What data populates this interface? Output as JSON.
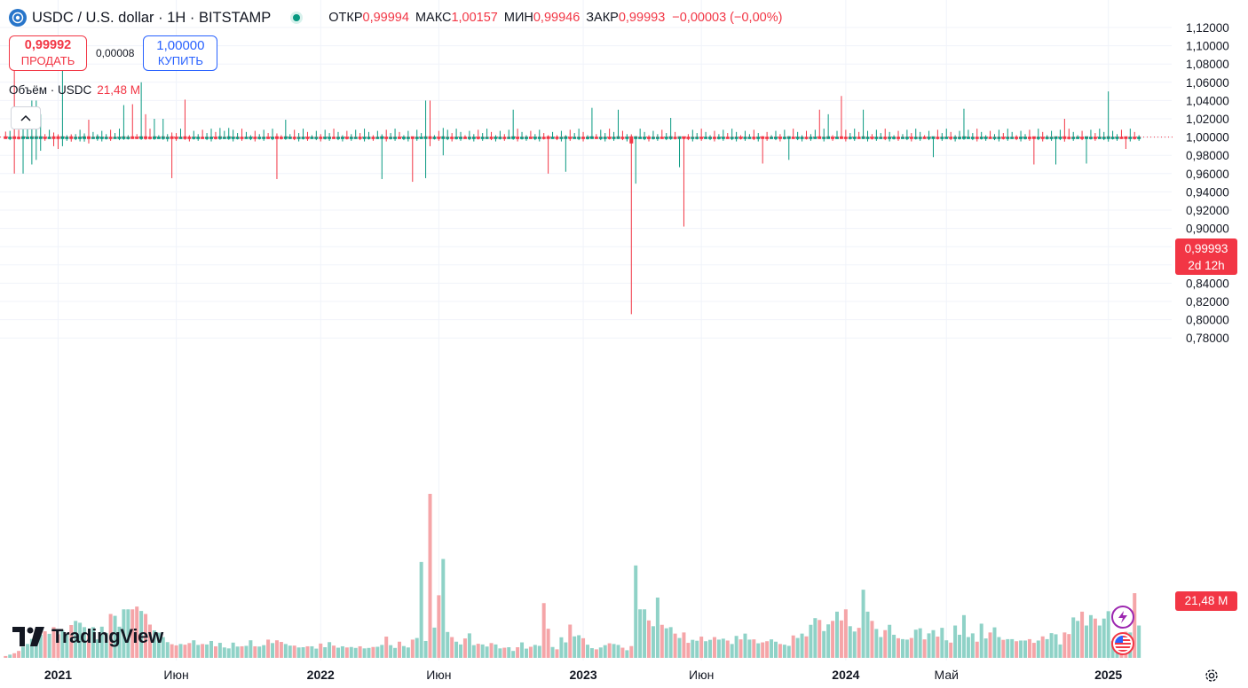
{
  "header": {
    "symbol_title": "USDC / U.S. dollar · 1H · BITSTAMP",
    "ohlc": {
      "open_label": "ОТКР",
      "open": "0,99994",
      "high_label": "МАКС",
      "high": "1,00157",
      "low_label": "МИН",
      "low": "0,99946",
      "close_label": "ЗАКР",
      "close": "0,99993",
      "change": "−0,00003 (−0,00%)"
    }
  },
  "trade": {
    "sell_price": "0,99992",
    "sell_label": "ПРОДАТЬ",
    "spread": "0,00008",
    "buy_price": "1,00000",
    "buy_label": "КУПИТЬ"
  },
  "volume_legend": {
    "label": "Объём · USDC",
    "value": "21,48 M"
  },
  "logo": {
    "wordmark": "TradingView"
  },
  "price_tag": {
    "price": "0,99993",
    "countdown": "2d 12h"
  },
  "volume_tag": {
    "value": "21,48 M"
  },
  "icons": {
    "symbol_logo": "usdc-coin-icon",
    "status": "market-open-dot-icon",
    "collapse": "chevron-up-icon",
    "lightning": "lightning-icon",
    "flag": "us-flag-icon",
    "settings": "gear-icon"
  },
  "colors": {
    "up": "#089981",
    "down": "#f23645",
    "volume_up": "#8fd2c7",
    "volume_down": "#f5a5a8",
    "grid": "#f0f3fa",
    "text": "#131722"
  },
  "chart_data": {
    "type": "candlestick",
    "ylim": [
      0.77,
      1.125
    ],
    "y_ticks": [
      "1,12000",
      "1,10000",
      "1,08000",
      "1,06000",
      "1,04000",
      "1,02000",
      "1,00000",
      "0,98000",
      "0,96000",
      "0,94000",
      "0,92000",
      "0,90000",
      "0,88000",
      "0,86000",
      "0,84000",
      "0,82000",
      "0,80000",
      "0,78000"
    ],
    "y_tick_values": [
      1.12,
      1.1,
      1.08,
      1.06,
      1.04,
      1.02,
      1.0,
      0.98,
      0.96,
      0.94,
      0.92,
      0.9,
      0.88,
      0.86,
      0.84,
      0.82,
      0.8,
      0.78
    ],
    "x_tick_labels": [
      {
        "label": "2021",
        "index": 12,
        "bold": true
      },
      {
        "label": "Июн",
        "index": 39,
        "bold": false
      },
      {
        "label": "2022",
        "index": 72,
        "bold": true
      },
      {
        "label": "Июн",
        "index": 99,
        "bold": false
      },
      {
        "label": "2023",
        "index": 132,
        "bold": true
      },
      {
        "label": "Июн",
        "index": 159,
        "bold": false
      },
      {
        "label": "2024",
        "index": 192,
        "bold": true
      },
      {
        "label": "Май",
        "index": 215,
        "bold": false
      },
      {
        "label": "2025",
        "index": 252,
        "bold": true
      }
    ],
    "last_price": 0.99993,
    "series": [
      {
        "name": "Price",
        "values": [
          {
            "i": 0,
            "dir": "down",
            "low": 0.998,
            "high": 1.006
          },
          {
            "i": 2,
            "dir": "down",
            "low": 0.96,
            "high": 1.08
          },
          {
            "i": 4,
            "dir": "up",
            "low": 0.96,
            "high": 1.02
          },
          {
            "i": 6,
            "dir": "up",
            "low": 0.97,
            "high": 1.04
          },
          {
            "i": 7,
            "dir": "up",
            "low": 0.975,
            "high": 1.04
          },
          {
            "i": 8,
            "dir": "up",
            "low": 0.985,
            "high": 1.025
          },
          {
            "i": 11,
            "dir": "down",
            "low": 0.99,
            "high": 1.005
          },
          {
            "i": 12,
            "dir": "down",
            "low": 0.987,
            "high": 1.003
          },
          {
            "i": 13,
            "dir": "up",
            "low": 0.99,
            "high": 1.095
          },
          {
            "i": 15,
            "dir": "down",
            "low": 0.995,
            "high": 1.003
          },
          {
            "i": 18,
            "dir": "up",
            "low": 0.995,
            "high": 1.004
          },
          {
            "i": 19,
            "dir": "down",
            "low": 0.993,
            "high": 1.019
          },
          {
            "i": 21,
            "dir": "up",
            "low": 0.996,
            "high": 1.003
          },
          {
            "i": 27,
            "dir": "up",
            "low": 0.997,
            "high": 1.035
          },
          {
            "i": 29,
            "dir": "down",
            "low": 0.998,
            "high": 1.036
          },
          {
            "i": 31,
            "dir": "up",
            "low": 0.997,
            "high": 1.06
          },
          {
            "i": 32,
            "dir": "down",
            "low": 0.997,
            "high": 1.025
          },
          {
            "i": 34,
            "dir": "up",
            "low": 0.997,
            "high": 1.02
          },
          {
            "i": 36,
            "dir": "up",
            "low": 0.997,
            "high": 1.02
          },
          {
            "i": 38,
            "dir": "down",
            "low": 0.955,
            "high": 1.005
          },
          {
            "i": 41,
            "dir": "down",
            "low": 0.997,
            "high": 1.041
          },
          {
            "i": 49,
            "dir": "up",
            "low": 0.997,
            "high": 1.01
          },
          {
            "i": 51,
            "dir": "up",
            "low": 0.997,
            "high": 1.01
          },
          {
            "i": 62,
            "dir": "down",
            "low": 0.954,
            "high": 1.004
          },
          {
            "i": 64,
            "dir": "up",
            "low": 0.997,
            "high": 1.019
          },
          {
            "i": 86,
            "dir": "up",
            "low": 0.954,
            "high": 1.003
          },
          {
            "i": 93,
            "dir": "down",
            "low": 0.951,
            "high": 1.0
          },
          {
            "i": 96,
            "dir": "up",
            "low": 0.955,
            "high": 1.04
          },
          {
            "i": 97,
            "dir": "down",
            "low": 0.99,
            "high": 1.04
          },
          {
            "i": 100,
            "dir": "up",
            "low": 0.98,
            "high": 1.01
          },
          {
            "i": 116,
            "dir": "up",
            "low": 0.997,
            "high": 1.03
          },
          {
            "i": 124,
            "dir": "down",
            "low": 0.96,
            "high": 1.002
          },
          {
            "i": 128,
            "dir": "up",
            "low": 0.962,
            "high": 1.002
          },
          {
            "i": 134,
            "dir": "up",
            "low": 0.998,
            "high": 1.032
          },
          {
            "i": 140,
            "dir": "up",
            "low": 0.998,
            "high": 1.03
          },
          {
            "i": 143,
            "dir": "down",
            "low": 0.806,
            "high": 1.003
          },
          {
            "i": 144,
            "dir": "up",
            "low": 0.949,
            "high": 1.001
          },
          {
            "i": 152,
            "dir": "up",
            "low": 0.997,
            "high": 1.021
          },
          {
            "i": 154,
            "dir": "up",
            "low": 0.967,
            "high": 0.999
          },
          {
            "i": 155,
            "dir": "down",
            "low": 0.902,
            "high": 1.0
          },
          {
            "i": 173,
            "dir": "down",
            "low": 0.971,
            "high": 1.001
          },
          {
            "i": 179,
            "dir": "up",
            "low": 0.975,
            "high": 1.001
          },
          {
            "i": 186,
            "dir": "down",
            "low": 0.998,
            "high": 1.03
          },
          {
            "i": 188,
            "dir": "up",
            "low": 0.998,
            "high": 1.025
          },
          {
            "i": 191,
            "dir": "down",
            "low": 0.998,
            "high": 1.045
          },
          {
            "i": 196,
            "dir": "up",
            "low": 0.998,
            "high": 1.03
          },
          {
            "i": 212,
            "dir": "up",
            "low": 0.978,
            "high": 1.0
          },
          {
            "i": 219,
            "dir": "up",
            "low": 0.997,
            "high": 1.031
          },
          {
            "i": 235,
            "dir": "down",
            "low": 0.97,
            "high": 1.0
          },
          {
            "i": 240,
            "dir": "up",
            "low": 0.97,
            "high": 1.0
          },
          {
            "i": 242,
            "dir": "down",
            "low": 0.995,
            "high": 1.02
          },
          {
            "i": 247,
            "dir": "up",
            "low": 0.971,
            "high": 1.0
          },
          {
            "i": 252,
            "dir": "up",
            "low": 0.995,
            "high": 1.05
          },
          {
            "i": 256,
            "dir": "down",
            "low": 0.987,
            "high": 1.0
          }
        ]
      },
      {
        "name": "Volume",
        "unit": "M",
        "values": [
          0.8,
          1.4,
          2.0,
          3.0,
          4.8,
          6.0,
          8.2,
          10.0,
          10.0,
          11.5,
          10.4,
          13.3,
          10.2,
          12.0,
          10.4,
          14.2,
          16.0,
          15.2,
          13.3,
          10.0,
          13.3,
          8.0,
          13.5,
          10.8,
          19.0,
          18.2,
          13.5,
          21.0,
          21.0,
          21.0,
          22.2,
          20.3,
          19.0,
          14.4,
          11.9,
          10.9,
          9.0,
          6.8,
          5.9,
          5.4,
          6.0,
          5.7,
          6.4,
          7.6,
          5.6,
          6.0,
          5.8,
          7.3,
          5.0,
          6.5,
          4.5,
          4.1,
          6.6,
          4.9,
          5.0,
          5.2,
          7.6,
          5.0,
          4.9,
          5.5,
          7.9,
          6.4,
          7.6,
          6.9,
          6.0,
          5.3,
          5.3,
          4.5,
          4.6,
          5.0,
          5.0,
          4.0,
          6.2,
          4.6,
          6.8,
          5.3,
          4.4,
          5.0,
          4.5,
          4.7,
          4.3,
          5.0,
          4.1,
          4.3,
          4.7,
          4.8,
          5.6,
          9.2,
          5.5,
          4.3,
          7.0,
          5.1,
          4.5,
          7.9,
          8.6,
          41.5,
          7.3,
          71.0,
          13.1,
          27.1,
          42.8,
          11.2,
          9.0,
          7.0,
          5.8,
          8.4,
          10.6,
          5.5,
          6.1,
          5.8,
          4.9,
          6.4,
          5.8,
          4.1,
          4.4,
          4.6,
          3.0,
          4.6,
          6.7,
          4.0,
          4.8,
          5.6,
          5.2,
          23.7,
          12.6,
          4.7,
          3.7,
          8.9,
          6.7,
          14.4,
          9.3,
          9.8,
          8.5,
          5.7,
          4.2,
          3.7,
          4.5,
          5.5,
          6.3,
          6.0,
          5.6,
          4.4,
          3.3,
          5.1,
          40.0,
          21.0,
          21.0,
          16.2,
          13.7,
          26.1,
          14.3,
          12.8,
          13.3,
          10.5,
          8.6,
          11.0,
          6.5,
          7.8,
          7.4,
          9.2,
          7.2,
          7.8,
          9.0,
          7.9,
          8.3,
          7.5,
          6.0,
          9.5,
          8.0,
          10.5,
          7.9,
          8.0,
          6.3,
          6.7,
          7.2,
          8.0,
          7.0,
          6.0,
          5.7,
          5.2,
          9.7,
          8.6,
          10.5,
          9.3,
          14.3,
          17.2,
          16.4,
          11.6,
          14.5,
          16.0,
          20.0,
          16.2,
          21.0,
          13.7,
          11.4,
          13.0,
          29.5,
          20.0,
          16.0,
          12.5,
          9.0,
          12.0,
          14.3,
          10.0,
          8.5,
          8.1,
          7.9,
          8.6,
          12.2,
          12.8,
          8.0,
          10.6,
          12.0,
          9.2,
          13.0,
          7.6,
          6.6,
          14.0,
          10.0,
          18.5,
          9.0,
          10.6,
          7.0,
          14.8,
          8.4,
          11.0,
          13.2,
          9.0,
          7.8,
          8.1,
          8.1,
          7.2,
          7.5,
          7.5,
          8.1,
          6.5,
          7.5,
          9.3,
          8.1,
          10.7,
          10.2,
          5.8,
          11.0,
          10.3,
          17.5,
          16.0,
          20.0,
          14.0,
          18.5,
          17.0,
          14.0,
          17.0,
          20.2,
          7.2,
          8.8,
          10.0,
          11.3,
          11.0,
          28.0,
          14.0
        ]
      }
    ]
  }
}
